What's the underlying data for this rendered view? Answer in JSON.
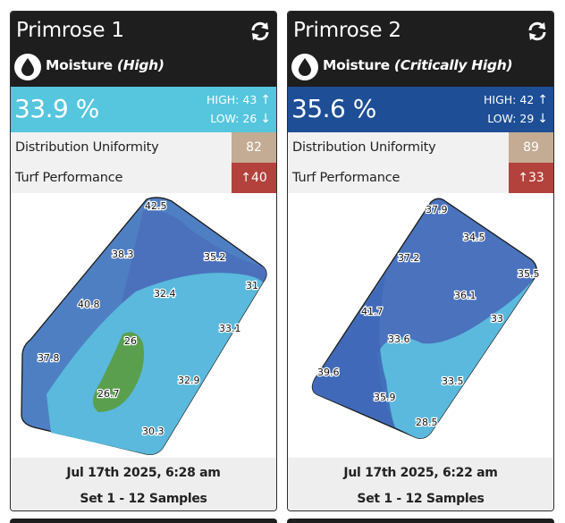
{
  "cards": [
    {
      "title": "Primrose 1",
      "metric": "Moisture",
      "status": "(High)",
      "value": "33.9 %",
      "band_color": "#55c6de",
      "high_label": "HIGH: 43",
      "low_label": "LOW: 26",
      "du_label": "Distribution Uniformity",
      "du_value": "82",
      "turf_label": "Turf Performance",
      "turf_value": "40",
      "date": "Jul 17th 2025, 6:28 am",
      "samples": "Set 1 - 12 Samples",
      "map_labels": [
        "42.5",
        "38.3",
        "35.2",
        "40.8",
        "32.4",
        "31",
        "33.1",
        "26",
        "37.8",
        "26.7",
        "32.9",
        "30.3"
      ]
    },
    {
      "title": "Primrose 2",
      "metric": "Moisture",
      "status": "(Critically High)",
      "value": "35.6 %",
      "band_color": "#1d4e96",
      "high_label": "HIGH: 42",
      "low_label": "LOW: 29",
      "du_label": "Distribution Uniformity",
      "du_value": "89",
      "turf_label": "Turf Performance",
      "turf_value": "33",
      "date": "Jul 17th 2025, 6:22 am",
      "samples": "Set 1 - 12 Samples",
      "map_labels": [
        "37.9",
        "34.5",
        "37.2",
        "35.5",
        "36.1",
        "41.7",
        "33",
        "33.6",
        "39.6",
        "33.5",
        "35.9",
        "28.5"
      ]
    }
  ],
  "icons": {
    "refresh": "refresh-icon",
    "drop": "water-drop-icon",
    "up": "arrow-up-icon",
    "down": "arrow-down-icon"
  }
}
